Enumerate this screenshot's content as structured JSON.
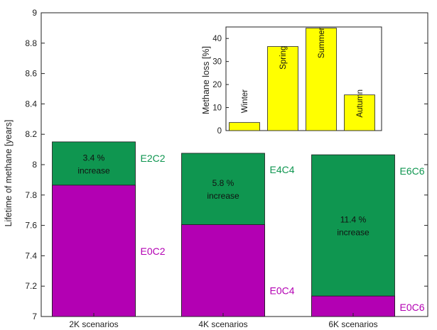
{
  "chart_data": [
    {
      "type": "bar",
      "ylabel": "Lifetime of methane [years]",
      "ylim": [
        7,
        9
      ],
      "yticks": [
        "7",
        "7.2",
        "7.4",
        "7.6",
        "7.8",
        "8",
        "8.2",
        "8.4",
        "8.6",
        "8.8",
        "9"
      ],
      "categories": [
        "2K scenarios",
        "4K scenarios",
        "6K scenarios"
      ],
      "series": [
        {
          "name": "",
          "color": "#0f9650",
          "values": [
            8.15,
            8.075,
            8.065
          ],
          "labels": [
            "E2C2",
            "E4C4",
            "E6C6"
          ],
          "label_color": "#0f9650"
        },
        {
          "name": "",
          "color": "#b300b3",
          "values": [
            7.865,
            7.605,
            7.135
          ],
          "labels": [
            "E0C2",
            "E0C4",
            "E0C6"
          ],
          "label_color": "#b300b3"
        }
      ],
      "annotations": [
        {
          "category": "2K scenarios",
          "line1": "3.4 %",
          "line2": "increase"
        },
        {
          "category": "4K scenarios",
          "line1": "5.8 %",
          "line2": "increase"
        },
        {
          "category": "6K scenarios",
          "line1": "11.4 %",
          "line2": "increase"
        }
      ],
      "grid": false
    },
    {
      "type": "bar",
      "inset": true,
      "ylabel": "Methane loss [%]",
      "ylim": [
        0,
        45
      ],
      "yticks": [
        "0",
        "10",
        "20",
        "30",
        "40"
      ],
      "categories": [
        "Winter",
        "Spring",
        "Summer",
        "Autumn"
      ],
      "values": [
        3.5,
        36.5,
        44.5,
        15.5
      ],
      "color": "#ffff00"
    }
  ]
}
